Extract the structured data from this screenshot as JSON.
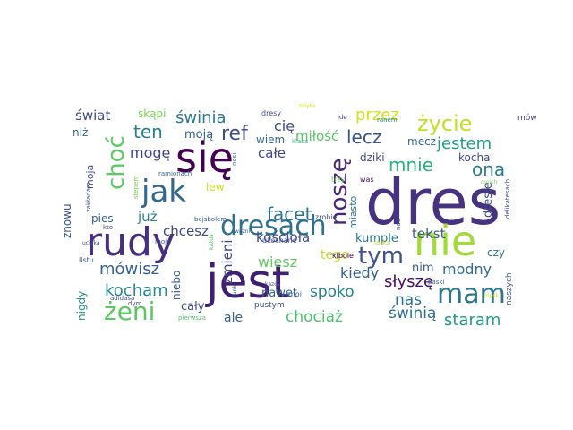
{
  "words": [
    {
      "text": "dres",
      "color": "#46327e"
    },
    {
      "text": "nie",
      "color": "#a2da37"
    },
    {
      "text": "się",
      "color": "#440154"
    },
    {
      "text": "jest",
      "color": "#3f1f73"
    },
    {
      "text": "rudy",
      "color": "#472f7d"
    },
    {
      "text": "mam",
      "color": "#2b758e"
    },
    {
      "text": "dresach",
      "color": "#2c728e"
    },
    {
      "text": "jak",
      "color": "#31688e"
    },
    {
      "text": "noszę",
      "color": "#482576"
    },
    {
      "text": "tym",
      "color": "#3b528b"
    },
    {
      "text": "żeni",
      "color": "#5cc863"
    },
    {
      "text": "życie",
      "color": "#c2df23"
    },
    {
      "text": "choć",
      "color": "#5ec962"
    },
    {
      "text": "facet",
      "color": "#2c728e"
    },
    {
      "text": "ref",
      "color": "#3c4f8a"
    },
    {
      "text": "świnia",
      "color": "#2a788e"
    },
    {
      "text": "ten",
      "color": "#26818e"
    },
    {
      "text": "lecz",
      "color": "#3b528b"
    },
    {
      "text": "mnie",
      "color": "#2db27d"
    },
    {
      "text": "przez",
      "color": "#d2e21b"
    },
    {
      "text": "jestem",
      "color": "#1f9e89"
    },
    {
      "text": "ona",
      "color": "#287d8e"
    },
    {
      "text": "świat",
      "color": "#3e4a89"
    },
    {
      "text": "mów",
      "color": "#433e85"
    },
    {
      "text": "zmieni",
      "color": "#414487"
    },
    {
      "text": "kościoła",
      "color": "#3f4788"
    },
    {
      "text": "mówisz",
      "color": "#355f8d"
    },
    {
      "text": "kocham",
      "color": "#24878e"
    },
    {
      "text": "chcesz",
      "color": "#3e4a89"
    },
    {
      "text": "już",
      "color": "#26818e"
    },
    {
      "text": "spoko",
      "color": "#25838e"
    },
    {
      "text": "słyszę",
      "color": "#471063"
    },
    {
      "text": "kiedy",
      "color": "#365c8d"
    },
    {
      "text": "modny",
      "color": "#2f6c8e"
    },
    {
      "text": "nas",
      "color": "#2e6f8e"
    },
    {
      "text": "tekst",
      "color": "#365d8d"
    },
    {
      "text": "staram",
      "color": "#1f9a8a"
    },
    {
      "text": "chociaż",
      "color": "#4cc26c"
    },
    {
      "text": "świnią",
      "color": "#2e6e8e"
    },
    {
      "text": "ale",
      "color": "#33638d"
    },
    {
      "text": "cały",
      "color": "#3e4989"
    },
    {
      "text": "nawet",
      "color": "#35608d"
    },
    {
      "text": "wiesz",
      "color": "#5ec962"
    },
    {
      "text": "cię",
      "color": "#3e4a89"
    },
    {
      "text": "całe",
      "color": "#414487"
    },
    {
      "text": "miłość",
      "color": "#56c667"
    },
    {
      "text": "wiem",
      "color": "#31688e"
    },
    {
      "text": "mogę",
      "color": "#414487"
    },
    {
      "text": "moją",
      "color": "#355e8d"
    },
    {
      "text": "skąpi",
      "color": "#7ad151"
    },
    {
      "text": "niż",
      "color": "#31688e"
    },
    {
      "text": "pies",
      "color": "#34608d"
    },
    {
      "text": "znowu",
      "color": "#3a538b"
    },
    {
      "text": "nigdy",
      "color": "#21918c"
    },
    {
      "text": "niebo",
      "color": "#3b528b"
    },
    {
      "text": "lew",
      "color": "#c8e020"
    },
    {
      "text": "tego",
      "color": "#bddf26"
    },
    {
      "text": "kumple",
      "color": "#2a768e"
    },
    {
      "text": "dresie",
      "color": "#3e4a89"
    },
    {
      "text": "czy",
      "color": "#2a768e"
    },
    {
      "text": "nim",
      "color": "#39568c"
    },
    {
      "text": "mecz",
      "color": "#31688e"
    },
    {
      "text": "kocha",
      "color": "#3e4989"
    },
    {
      "text": "dziki",
      "color": "#3e4989"
    },
    {
      "text": "miasto",
      "color": "#2c738e"
    },
    {
      "text": "moja",
      "color": "#3f4788"
    },
    {
      "text": "naszych",
      "color": "#3d4d8a"
    },
    {
      "text": "moi",
      "color": "#32658e"
    },
    {
      "text": "pustym",
      "color": "#3c508b"
    },
    {
      "text": "dresy",
      "color": "#3e4a89"
    },
    {
      "text": "zmyka",
      "color": "#d8e219"
    },
    {
      "text": "ranem",
      "color": "#23898e"
    },
    {
      "text": "klasa",
      "color": "#35b779"
    },
    {
      "text": "trzy",
      "color": "#6ccd5a"
    },
    {
      "text": "was",
      "color": "#471063"
    },
    {
      "text": "idę",
      "color": "#433e85"
    },
    {
      "text": "nosi",
      "color": "#3b528b"
    },
    {
      "text": "moich",
      "color": "#6ccd5a"
    },
    {
      "text": "delikatesach",
      "color": "#3e4a89"
    },
    {
      "text": "ramionach",
      "color": "#33638d"
    },
    {
      "text": "stepem",
      "color": "#7ad151"
    },
    {
      "text": "zakładam",
      "color": "#3d4e8a"
    },
    {
      "text": "kto",
      "color": "#3e4a89"
    },
    {
      "text": "bejsbolem",
      "color": "#3b528b"
    },
    {
      "text": "zrobię",
      "color": "#3b528b"
    },
    {
      "text": "laska",
      "color": "#b5de2b"
    },
    {
      "text": "nad",
      "color": "#3e4989"
    },
    {
      "text": "ukochane",
      "color": "#3e4a89"
    },
    {
      "text": "kibole",
      "color": "#440154"
    },
    {
      "text": "paski",
      "color": "#33638d"
    },
    {
      "text": "hipsk",
      "color": "#d2e21b"
    },
    {
      "text": "ucieka",
      "color": "#3e4a89"
    },
    {
      "text": "moje",
      "color": "#3b528b"
    },
    {
      "text": "każda",
      "color": "#4ac16d"
    },
    {
      "text": "listu",
      "color": "#3b528b"
    },
    {
      "text": "adidasa",
      "color": "#3e4a89"
    },
    {
      "text": "dym",
      "color": "#3b528b"
    },
    {
      "text": "pierwsza",
      "color": "#4ac16d"
    },
    {
      "text": "punk",
      "color": "#3b528b"
    },
    {
      "text": "kazdy",
      "color": "#3b528b"
    },
    {
      "text": "ważni",
      "color": "#3b528b"
    }
  ]
}
